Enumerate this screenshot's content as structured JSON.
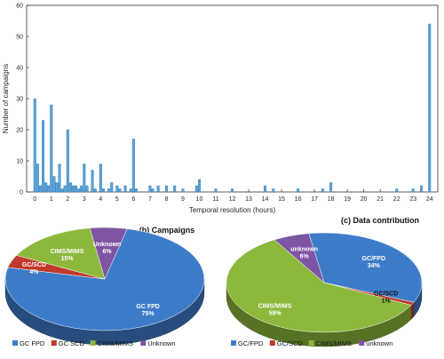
{
  "chart_data": [
    {
      "type": "bar",
      "xlabel": "Temporal resolution (hours)",
      "ylabel": "Number of campaigns",
      "xlim": [
        -0.5,
        24.5
      ],
      "ylim": [
        0,
        60
      ],
      "xticks": [
        0,
        1,
        2,
        3,
        4,
        5,
        6,
        7,
        8,
        9,
        10,
        11,
        12,
        13,
        14,
        15,
        16,
        17,
        18,
        19,
        20,
        21,
        22,
        23,
        24
      ],
      "yticks": [
        0,
        10,
        20,
        30,
        40,
        50,
        60
      ],
      "grid": false,
      "color": "#5ba3d8",
      "points": [
        {
          "x": 0.0,
          "y": 30
        },
        {
          "x": 0.17,
          "y": 9
        },
        {
          "x": 0.33,
          "y": 2
        },
        {
          "x": 0.5,
          "y": 23
        },
        {
          "x": 0.67,
          "y": 3
        },
        {
          "x": 0.83,
          "y": 2
        },
        {
          "x": 1.0,
          "y": 28
        },
        {
          "x": 1.17,
          "y": 5
        },
        {
          "x": 1.33,
          "y": 3
        },
        {
          "x": 1.5,
          "y": 9
        },
        {
          "x": 1.67,
          "y": 1
        },
        {
          "x": 1.83,
          "y": 2
        },
        {
          "x": 2.0,
          "y": 20
        },
        {
          "x": 2.17,
          "y": 3
        },
        {
          "x": 2.33,
          "y": 2
        },
        {
          "x": 2.5,
          "y": 2
        },
        {
          "x": 2.67,
          "y": 1
        },
        {
          "x": 2.83,
          "y": 2
        },
        {
          "x": 3.0,
          "y": 9
        },
        {
          "x": 3.17,
          "y": 2
        },
        {
          "x": 3.5,
          "y": 7
        },
        {
          "x": 3.67,
          "y": 1
        },
        {
          "x": 4.0,
          "y": 9
        },
        {
          "x": 4.17,
          "y": 1
        },
        {
          "x": 4.5,
          "y": 1
        },
        {
          "x": 4.67,
          "y": 3
        },
        {
          "x": 5.0,
          "y": 2
        },
        {
          "x": 5.17,
          "y": 1
        },
        {
          "x": 5.5,
          "y": 2
        },
        {
          "x": 5.83,
          "y": 1
        },
        {
          "x": 6.0,
          "y": 17
        },
        {
          "x": 6.17,
          "y": 1
        },
        {
          "x": 7.0,
          "y": 2
        },
        {
          "x": 7.17,
          "y": 1
        },
        {
          "x": 7.5,
          "y": 2
        },
        {
          "x": 8.0,
          "y": 2
        },
        {
          "x": 8.5,
          "y": 2
        },
        {
          "x": 9.0,
          "y": 1
        },
        {
          "x": 9.83,
          "y": 2
        },
        {
          "x": 10.0,
          "y": 4
        },
        {
          "x": 11.0,
          "y": 1
        },
        {
          "x": 12.0,
          "y": 1
        },
        {
          "x": 14.0,
          "y": 2
        },
        {
          "x": 14.5,
          "y": 1
        },
        {
          "x": 16.0,
          "y": 1
        },
        {
          "x": 17.5,
          "y": 1
        },
        {
          "x": 18.0,
          "y": 3
        },
        {
          "x": 22.0,
          "y": 1
        },
        {
          "x": 23.0,
          "y": 1
        },
        {
          "x": 23.5,
          "y": 2
        },
        {
          "x": 24.0,
          "y": 54
        }
      ]
    },
    {
      "type": "pie",
      "title": "(b) Campaigns",
      "slices": [
        {
          "name": "GC FPD",
          "label": "GC FPD\n75%",
          "value": 75,
          "color": "#3d7cc9"
        },
        {
          "name": "GC SCD",
          "label": "GC/SCD\n4%",
          "value": 4,
          "color": "#c0392b"
        },
        {
          "name": "CIMS/MIMS",
          "label": "CIMS/MIMS\n15%",
          "value": 15,
          "color": "#8cb83c"
        },
        {
          "name": "Unknown",
          "label": "Unknown\n6%",
          "value": 6,
          "color": "#7e55a3"
        }
      ],
      "legend": [
        "GC FPD",
        "GC SCD",
        "CIMS/MIMS",
        "Unknown"
      ]
    },
    {
      "type": "pie",
      "title": "(c) Data contribution",
      "slices": [
        {
          "name": "GC/FPD",
          "label": "GC/FPD\n34%",
          "value": 34,
          "color": "#3d7cc9"
        },
        {
          "name": "GC/SCD",
          "label": "GC/SCD\n1%",
          "value": 1,
          "color": "#c0392b"
        },
        {
          "name": "CIMS/MIMS",
          "label": "CIMS/MIMS\n59%",
          "value": 59,
          "color": "#8cb83c"
        },
        {
          "name": "unknown",
          "label": "unknown\n6%",
          "value": 6,
          "color": "#7e55a3"
        }
      ],
      "legend": [
        "GC/FPD",
        "GC/SCD",
        "CIMS/MIMS",
        "unknown"
      ]
    }
  ]
}
